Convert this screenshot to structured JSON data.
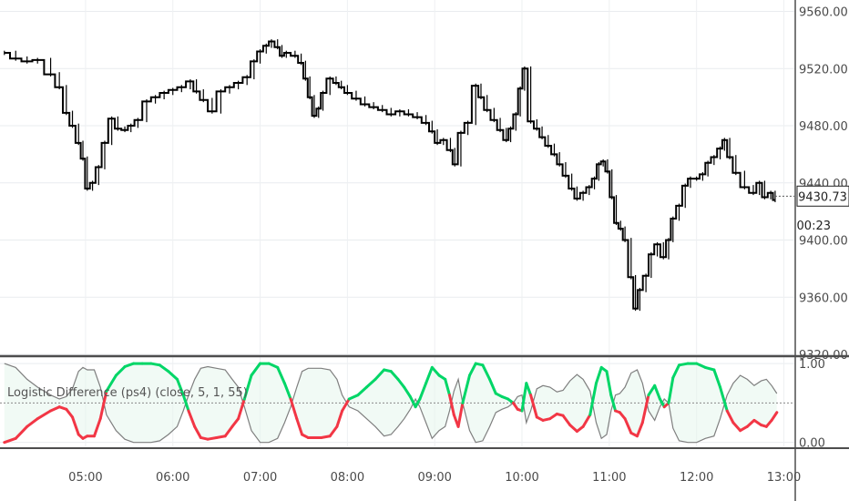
{
  "chart_data": [
    {
      "type": "candlestick",
      "pane": "price",
      "y_ticks": [
        "9560.00",
        "9520.00",
        "9480.00",
        "9440.00",
        "9400.00",
        "9360.00",
        "9320.00"
      ],
      "y_range": [
        9320,
        9568
      ],
      "last_price": "9430.73",
      "countdown": "00:23",
      "grid": true,
      "series": [
        {
          "name": "",
          "values": [
            [
              4.07,
              9531
            ],
            [
              4.2,
              9527
            ],
            [
              4.33,
              9525
            ],
            [
              4.45,
              9526
            ],
            [
              4.6,
              9516
            ],
            [
              4.7,
              9507
            ],
            [
              4.78,
              9489
            ],
            [
              4.85,
              9480
            ],
            [
              4.92,
              9468
            ],
            [
              4.97,
              9457
            ],
            [
              5.02,
              9436
            ],
            [
              5.08,
              9440
            ],
            [
              5.15,
              9451
            ],
            [
              5.22,
              9468
            ],
            [
              5.3,
              9485
            ],
            [
              5.37,
              9478
            ],
            [
              5.45,
              9477
            ],
            [
              5.52,
              9480
            ],
            [
              5.6,
              9484
            ],
            [
              5.7,
              9497
            ],
            [
              5.8,
              9500
            ],
            [
              5.9,
              9503
            ],
            [
              6.0,
              9505
            ],
            [
              6.1,
              9507
            ],
            [
              6.2,
              9511
            ],
            [
              6.27,
              9504
            ],
            [
              6.35,
              9498
            ],
            [
              6.45,
              9490
            ],
            [
              6.55,
              9504
            ],
            [
              6.65,
              9507
            ],
            [
              6.75,
              9510
            ],
            [
              6.85,
              9514
            ],
            [
              6.93,
              9525
            ],
            [
              7.0,
              9532
            ],
            [
              7.07,
              9536
            ],
            [
              7.13,
              9539
            ],
            [
              7.2,
              9535
            ],
            [
              7.25,
              9529
            ],
            [
              7.3,
              9531
            ],
            [
              7.4,
              9529
            ],
            [
              7.47,
              9524
            ],
            [
              7.52,
              9513
            ],
            [
              7.57,
              9500
            ],
            [
              7.62,
              9487
            ],
            [
              7.67,
              9492
            ],
            [
              7.72,
              9503
            ],
            [
              7.8,
              9513
            ],
            [
              7.87,
              9510
            ],
            [
              7.93,
              9507
            ],
            [
              8.0,
              9503
            ],
            [
              8.1,
              9499
            ],
            [
              8.2,
              9495
            ],
            [
              8.3,
              9493
            ],
            [
              8.4,
              9491
            ],
            [
              8.5,
              9488
            ],
            [
              8.6,
              9490
            ],
            [
              8.7,
              9488
            ],
            [
              8.8,
              9486
            ],
            [
              8.9,
              9482
            ],
            [
              8.97,
              9476
            ],
            [
              9.03,
              9468
            ],
            [
              9.1,
              9470
            ],
            [
              9.18,
              9463
            ],
            [
              9.23,
              9453
            ],
            [
              9.3,
              9475
            ],
            [
              9.38,
              9482
            ],
            [
              9.47,
              9508
            ],
            [
              9.53,
              9500
            ],
            [
              9.6,
              9491
            ],
            [
              9.68,
              9484
            ],
            [
              9.75,
              9477
            ],
            [
              9.82,
              9470
            ],
            [
              9.87,
              9478
            ],
            [
              9.93,
              9488
            ],
            [
              9.98,
              9506
            ],
            [
              10.03,
              9520
            ],
            [
              10.1,
              9483
            ],
            [
              10.17,
              9478
            ],
            [
              10.23,
              9472
            ],
            [
              10.3,
              9466
            ],
            [
              10.37,
              9460
            ],
            [
              10.43,
              9453
            ],
            [
              10.5,
              9445
            ],
            [
              10.57,
              9436
            ],
            [
              10.63,
              9429
            ],
            [
              10.7,
              9433
            ],
            [
              10.77,
              9437
            ],
            [
              10.83,
              9443
            ],
            [
              10.88,
              9453
            ],
            [
              10.93,
              9455
            ],
            [
              10.98,
              9448
            ],
            [
              11.03,
              9430
            ],
            [
              11.08,
              9412
            ],
            [
              11.13,
              9408
            ],
            [
              11.18,
              9400
            ],
            [
              11.25,
              9374
            ],
            [
              11.3,
              9352
            ],
            [
              11.35,
              9365
            ],
            [
              11.42,
              9375
            ],
            [
              11.48,
              9390
            ],
            [
              11.55,
              9397
            ],
            [
              11.62,
              9388
            ],
            [
              11.68,
              9400
            ],
            [
              11.73,
              9415
            ],
            [
              11.8,
              9424
            ],
            [
              11.87,
              9438
            ],
            [
              11.93,
              9443
            ],
            [
              12.0,
              9443
            ],
            [
              12.07,
              9446
            ],
            [
              12.13,
              9454
            ],
            [
              12.2,
              9458
            ],
            [
              12.27,
              9464
            ],
            [
              12.32,
              9470
            ],
            [
              12.38,
              9458
            ],
            [
              12.45,
              9447
            ],
            [
              12.55,
              9437
            ],
            [
              12.65,
              9433
            ],
            [
              12.72,
              9440
            ],
            [
              12.78,
              9430
            ],
            [
              12.85,
              9433
            ],
            [
              12.9,
              9428
            ]
          ]
        }
      ]
    },
    {
      "type": "line",
      "pane": "indicator",
      "label": "Logistic Difference (ps4) (close, 5, 1, 55)",
      "y_ticks": [
        "1.00",
        "0.00"
      ],
      "y_range": [
        -0.05,
        1.07
      ],
      "midline": 0.5,
      "colors": {
        "above": "#00d667",
        "below": "#f23645",
        "mirror": "#7f7f7f"
      },
      "series": [
        {
          "name": "",
          "values": [
            [
              4.07,
              0.0
            ],
            [
              4.2,
              0.05
            ],
            [
              4.33,
              0.2
            ],
            [
              4.45,
              0.3
            ],
            [
              4.6,
              0.4
            ],
            [
              4.7,
              0.45
            ],
            [
              4.78,
              0.42
            ],
            [
              4.85,
              0.32
            ],
            [
              4.92,
              0.1
            ],
            [
              4.97,
              0.05
            ],
            [
              5.02,
              0.08
            ],
            [
              5.1,
              0.08
            ],
            [
              5.17,
              0.3
            ],
            [
              5.24,
              0.65
            ],
            [
              5.35,
              0.85
            ],
            [
              5.45,
              0.96
            ],
            [
              5.55,
              1.0
            ],
            [
              5.65,
              1.0
            ],
            [
              5.75,
              1.0
            ],
            [
              5.85,
              0.98
            ],
            [
              5.95,
              0.9
            ],
            [
              6.05,
              0.8
            ],
            [
              6.12,
              0.6
            ],
            [
              6.18,
              0.4
            ],
            [
              6.25,
              0.2
            ],
            [
              6.32,
              0.06
            ],
            [
              6.4,
              0.04
            ],
            [
              6.5,
              0.06
            ],
            [
              6.6,
              0.08
            ],
            [
              6.68,
              0.2
            ],
            [
              6.75,
              0.3
            ],
            [
              6.82,
              0.55
            ],
            [
              6.9,
              0.85
            ],
            [
              7.0,
              1.0
            ],
            [
              7.1,
              1.0
            ],
            [
              7.2,
              0.95
            ],
            [
              7.28,
              0.75
            ],
            [
              7.35,
              0.55
            ],
            [
              7.42,
              0.3
            ],
            [
              7.48,
              0.1
            ],
            [
              7.55,
              0.06
            ],
            [
              7.63,
              0.06
            ],
            [
              7.7,
              0.06
            ],
            [
              7.8,
              0.08
            ],
            [
              7.88,
              0.2
            ],
            [
              7.94,
              0.4
            ],
            [
              8.02,
              0.55
            ],
            [
              8.12,
              0.6
            ],
            [
              8.22,
              0.7
            ],
            [
              8.32,
              0.8
            ],
            [
              8.42,
              0.92
            ],
            [
              8.5,
              0.9
            ],
            [
              8.58,
              0.8
            ],
            [
              8.65,
              0.7
            ],
            [
              8.72,
              0.58
            ],
            [
              8.78,
              0.45
            ],
            [
              8.83,
              0.55
            ],
            [
              8.9,
              0.75
            ],
            [
              8.97,
              0.95
            ],
            [
              9.05,
              0.85
            ],
            [
              9.12,
              0.8
            ],
            [
              9.17,
              0.6
            ],
            [
              9.22,
              0.35
            ],
            [
              9.27,
              0.2
            ],
            [
              9.32,
              0.5
            ],
            [
              9.4,
              0.85
            ],
            [
              9.47,
              1.0
            ],
            [
              9.55,
              0.98
            ],
            [
              9.63,
              0.8
            ],
            [
              9.7,
              0.62
            ],
            [
              9.77,
              0.58
            ],
            [
              9.84,
              0.55
            ],
            [
              9.9,
              0.5
            ],
            [
              9.95,
              0.42
            ],
            [
              10.0,
              0.4
            ],
            [
              10.05,
              0.75
            ],
            [
              10.1,
              0.6
            ],
            [
              10.17,
              0.32
            ],
            [
              10.24,
              0.28
            ],
            [
              10.32,
              0.3
            ],
            [
              10.4,
              0.36
            ],
            [
              10.47,
              0.34
            ],
            [
              10.55,
              0.22
            ],
            [
              10.63,
              0.14
            ],
            [
              10.7,
              0.2
            ],
            [
              10.78,
              0.35
            ],
            [
              10.85,
              0.75
            ],
            [
              10.91,
              0.95
            ],
            [
              10.97,
              0.9
            ],
            [
              11.02,
              0.6
            ],
            [
              11.07,
              0.4
            ],
            [
              11.12,
              0.38
            ],
            [
              11.18,
              0.3
            ],
            [
              11.25,
              0.12
            ],
            [
              11.32,
              0.08
            ],
            [
              11.38,
              0.25
            ],
            [
              11.45,
              0.6
            ],
            [
              11.52,
              0.72
            ],
            [
              11.58,
              0.55
            ],
            [
              11.63,
              0.45
            ],
            [
              11.68,
              0.5
            ],
            [
              11.73,
              0.82
            ],
            [
              11.8,
              0.98
            ],
            [
              11.9,
              1.0
            ],
            [
              12.0,
              1.0
            ],
            [
              12.1,
              0.95
            ],
            [
              12.2,
              0.92
            ],
            [
              12.27,
              0.7
            ],
            [
              12.35,
              0.4
            ],
            [
              12.42,
              0.25
            ],
            [
              12.5,
              0.15
            ],
            [
              12.58,
              0.2
            ],
            [
              12.66,
              0.28
            ],
            [
              12.74,
              0.22
            ],
            [
              12.8,
              0.2
            ],
            [
              12.86,
              0.28
            ],
            [
              12.92,
              0.38
            ]
          ]
        }
      ]
    }
  ],
  "x_axis": {
    "range": [
      4.02,
      13.12
    ],
    "ticks": [
      {
        "x": 5,
        "label": "05:00"
      },
      {
        "x": 6,
        "label": "06:00"
      },
      {
        "x": 7,
        "label": "07:00"
      },
      {
        "x": 8,
        "label": "08:00"
      },
      {
        "x": 9,
        "label": "09:00"
      },
      {
        "x": 10,
        "label": "10:00"
      },
      {
        "x": 11,
        "label": "11:00"
      },
      {
        "x": 12,
        "label": "12:00"
      },
      {
        "x": 13,
        "label": "13:00"
      }
    ]
  }
}
